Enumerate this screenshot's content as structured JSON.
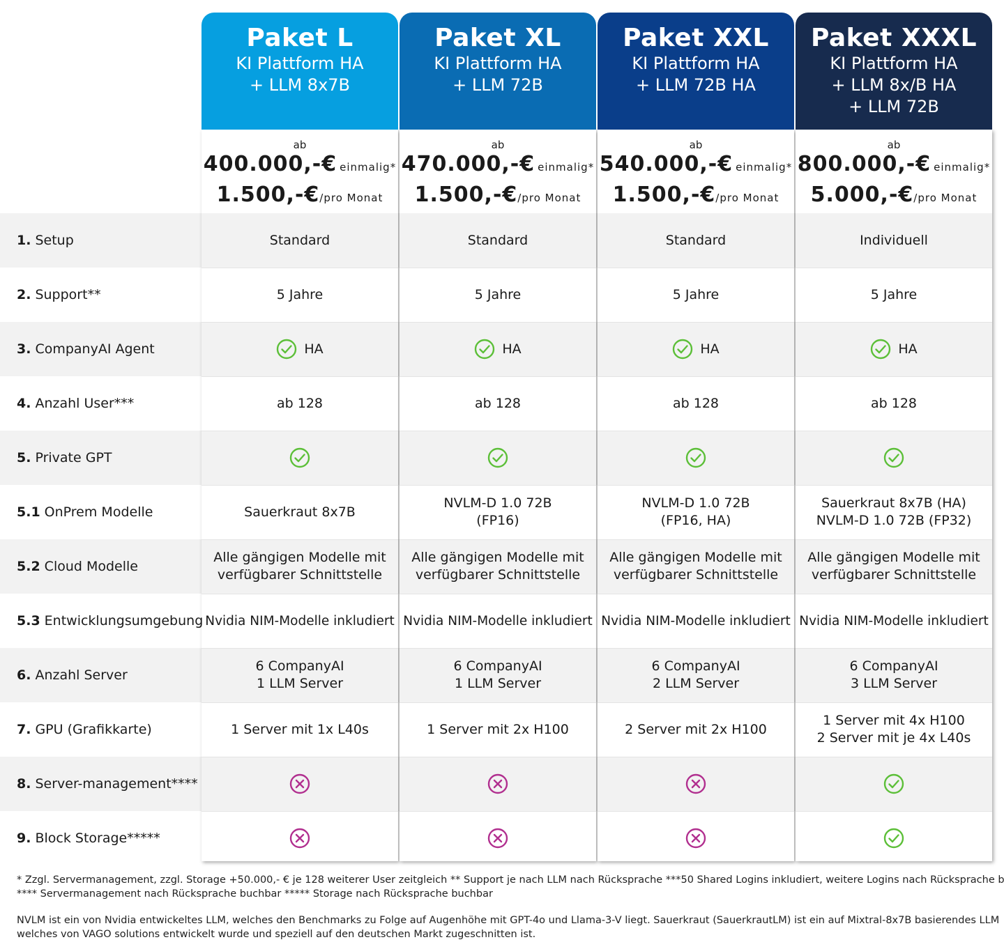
{
  "colors": {
    "L": "#069fe0",
    "XL": "#0a6cb3",
    "XXL": "#0a3e8a",
    "XXXL": "#172b4e",
    "check": "#5cbf38",
    "cross": "#b12f8f"
  },
  "packages": [
    {
      "name": "Paket L",
      "subtitle": [
        "KI Plattform HA",
        "+ LLM 8x7B"
      ],
      "price_prefix": "ab",
      "price_once": "400.000,-€",
      "price_once_suffix": "einmalig*",
      "price_month": "1.500,-€",
      "price_month_suffix": "/pro Monat",
      "setup": "Standard",
      "support": "5 Jahre",
      "agent": "HA",
      "users": "ab 128",
      "onprem": "Sauerkraut 8x7B",
      "cloud": "Alle gängigen Modelle mit\nverfügbarer Schnittstelle",
      "devenv": "Nvidia NIM-Modelle inkludiert",
      "servers": "6 CompanyAI\n1 LLM Server",
      "gpu": "1 Server mit 1x L40s",
      "private_gpt_icon": "check-icon",
      "server_mgmt_icon": "cross-icon",
      "block_storage_icon": "cross-icon"
    },
    {
      "name": "Paket XL",
      "subtitle": [
        "KI Plattform HA",
        "+ LLM 72B"
      ],
      "price_prefix": "ab",
      "price_once": "470.000,-€",
      "price_once_suffix": "einmalig*",
      "price_month": "1.500,-€",
      "price_month_suffix": "/pro Monat",
      "setup": "Standard",
      "support": "5 Jahre",
      "agent": "HA",
      "users": "ab 128",
      "onprem": "NVLM-D 1.0 72B\n(FP16)",
      "cloud": "Alle gängigen Modelle mit\nverfügbarer Schnittstelle",
      "devenv": "Nvidia NIM-Modelle inkludiert",
      "servers": "6 CompanyAI\n1 LLM Server",
      "gpu": "1 Server mit 2x H100",
      "private_gpt_icon": "check-icon",
      "server_mgmt_icon": "cross-icon",
      "block_storage_icon": "cross-icon"
    },
    {
      "name": "Paket XXL",
      "subtitle": [
        "KI Plattform HA",
        "+ LLM 72B HA"
      ],
      "price_prefix": "ab",
      "price_once": "540.000,-€",
      "price_once_suffix": "einmalig*",
      "price_month": "1.500,-€",
      "price_month_suffix": "/pro Monat",
      "setup": "Standard",
      "support": "5 Jahre",
      "agent": "HA",
      "users": "ab 128",
      "onprem": "NVLM-D 1.0 72B\n(FP16, HA)",
      "cloud": "Alle gängigen Modelle mit\nverfügbarer Schnittstelle",
      "devenv": "Nvidia NIM-Modelle inkludiert",
      "servers": "6 CompanyAI\n2 LLM Server",
      "gpu": "2 Server mit 2x H100",
      "private_gpt_icon": "check-icon",
      "server_mgmt_icon": "cross-icon",
      "block_storage_icon": "cross-icon"
    },
    {
      "name": "Paket XXXL",
      "subtitle": [
        "KI Plattform HA",
        "+ LLM 8x/B HA",
        "+ LLM 72B"
      ],
      "price_prefix": "ab",
      "price_once": "800.000,-€",
      "price_once_suffix": "einmalig*",
      "price_month": "5.000,-€",
      "price_month_suffix": "/pro Monat",
      "setup": "Individuell",
      "support": "5 Jahre",
      "agent": "HA",
      "users": "ab 128",
      "onprem": "Sauerkraut 8x7B (HA)\nNVLM-D 1.0 72B (FP32)",
      "cloud": "Alle gängigen Modelle mit\nverfügbarer Schnittstelle",
      "devenv": "Nvidia NIM-Modelle inkludiert",
      "servers": "6 CompanyAI\n3 LLM Server",
      "gpu": "1 Server mit 4x H100\n2 Server mit je 4x L40s",
      "private_gpt_icon": "check-icon",
      "server_mgmt_icon": "check-icon",
      "block_storage_icon": "check-icon"
    }
  ],
  "rows": [
    {
      "num": "1.",
      "label": "Setup",
      "key": "setup",
      "type": "text"
    },
    {
      "num": "2.",
      "label": "Support**",
      "key": "support",
      "type": "text"
    },
    {
      "num": "3.",
      "label": "CompanyAI Agent",
      "key": "agent",
      "type": "ha"
    },
    {
      "num": "4.",
      "label": "Anzahl User***",
      "key": "users",
      "type": "text"
    },
    {
      "num": "5.",
      "label": "Private GPT",
      "key": "private_gpt_icon",
      "type": "icon"
    },
    {
      "num": "5.1",
      "label": "OnPrem Modelle",
      "key": "onprem",
      "type": "text"
    },
    {
      "num": "5.2",
      "label": "Cloud Modelle",
      "key": "cloud",
      "type": "text"
    },
    {
      "num": "5.3",
      "label": "Entwicklungsumgebung",
      "key": "devenv",
      "type": "nim"
    },
    {
      "num": "6.",
      "label": "Anzahl Server",
      "key": "servers",
      "type": "text"
    },
    {
      "num": "7.",
      "label": "GPU (Grafikkarte)",
      "key": "gpu",
      "type": "text"
    },
    {
      "num": "8.",
      "label": "Server-management****",
      "key": "server_mgmt_icon",
      "type": "icon"
    },
    {
      "num": "9.",
      "label": "Block Storage*****",
      "key": "block_storage_icon",
      "type": "icon"
    }
  ],
  "footnotes": {
    "line1": "* Zzgl. Servermanagement, zzgl. Storage +50.000,- € je 128 weiterer User zeitgleich ** Support je nach LLM nach Rücksprache ***50 Shared Logins inkludiert, weitere Logins nach Rücksprache buchbar",
    "line2": "**** Servermanagement nach Rücksprache buchbar  ***** Storage nach Rücksprache buchbar",
    "line3": "NVLM ist ein von Nvidia entwickeltes LLM, welches den Benchmarks zu Folge auf Augenhöhe mit GPT-4o und Llama-3-V liegt. Sauerkraut (SauerkrautLM) ist ein auf Mixtral-8x7B basierendes LLM",
    "line4": "welches von VAGO solutions entwickelt wurde und speziell auf den deutschen Markt zugeschnitten ist."
  }
}
